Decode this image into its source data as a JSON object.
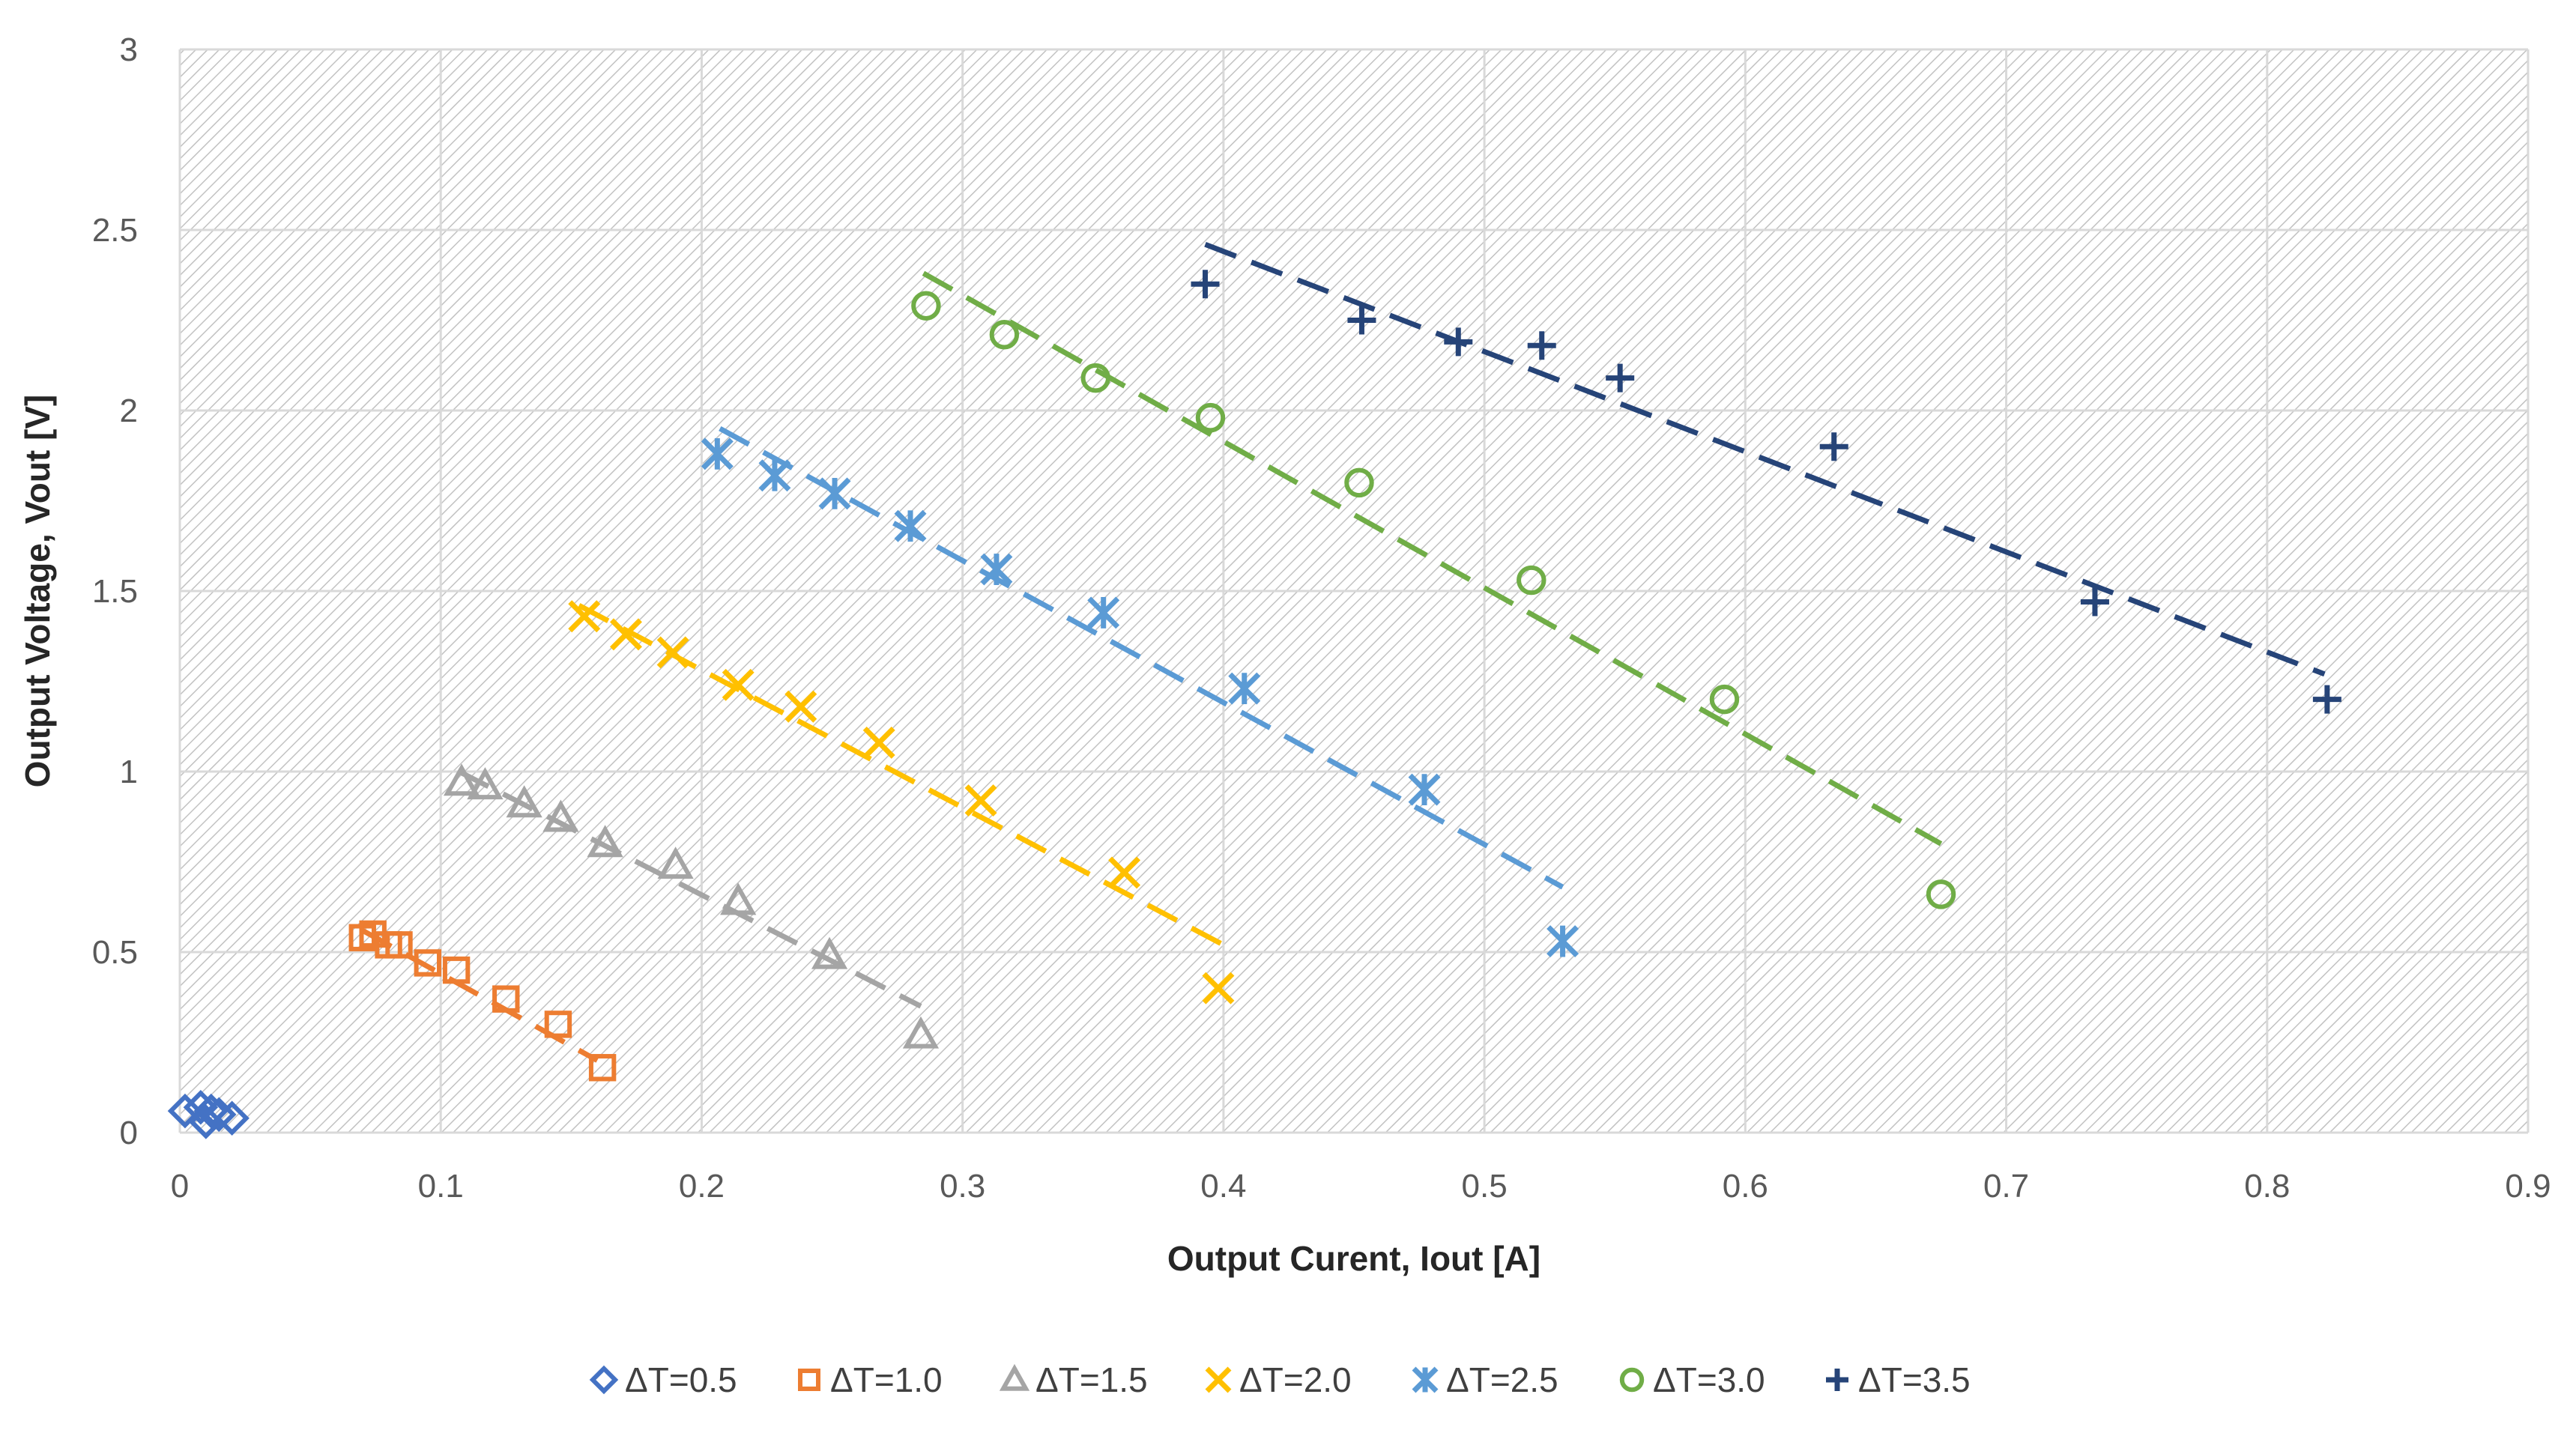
{
  "chart_data": {
    "type": "scatter",
    "title": "",
    "xlabel": "Output Curent, Iout [A]",
    "ylabel": "Output Voltage, Vout [V]",
    "xlim": [
      0,
      0.9
    ],
    "ylim": [
      0,
      3
    ],
    "xticks": [
      0,
      0.1,
      0.2,
      0.3,
      0.4,
      0.5,
      0.6,
      0.7,
      0.8,
      0.9
    ],
    "yticks": [
      0,
      0.5,
      1,
      1.5,
      2,
      2.5,
      3
    ],
    "xtick_labels": [
      "0",
      "0.1",
      "0.2",
      "0.3",
      "0.4",
      "0.5",
      "0.6",
      "0.7",
      "0.8",
      "0.9"
    ],
    "ytick_labels": [
      "0",
      "0.5",
      "1",
      "1.5",
      "2",
      "2.5",
      "3"
    ],
    "grid": true,
    "plot_background": "hatched",
    "legend_position": "bottom",
    "series": [
      {
        "name": "ΔT=0.5",
        "marker": "diamond",
        "color": "#4472C4",
        "x": [
          0.002,
          0.008,
          0.012,
          0.01,
          0.015,
          0.02
        ],
        "y": [
          0.06,
          0.07,
          0.06,
          0.03,
          0.05,
          0.04
        ],
        "trend": null
      },
      {
        "name": "ΔT=1.0",
        "marker": "square",
        "color": "#ED7D31",
        "x": [
          0.07,
          0.074,
          0.08,
          0.084,
          0.095,
          0.106,
          0.125,
          0.145,
          0.162
        ],
        "y": [
          0.54,
          0.55,
          0.52,
          0.52,
          0.47,
          0.45,
          0.37,
          0.3,
          0.18
        ],
        "trend": [
          [
            0.07,
            0.56
          ],
          [
            0.16,
            0.2
          ]
        ]
      },
      {
        "name": "ΔT=1.5",
        "marker": "triangle",
        "color": "#A5A5A5",
        "x": [
          0.108,
          0.117,
          0.132,
          0.146,
          0.163,
          0.19,
          0.214,
          0.249,
          0.284
        ],
        "y": [
          0.97,
          0.96,
          0.91,
          0.87,
          0.8,
          0.74,
          0.64,
          0.49,
          0.27
        ],
        "trend": [
          [
            0.107,
            1.0
          ],
          [
            0.284,
            0.35
          ]
        ]
      },
      {
        "name": "ΔT=2.0",
        "marker": "x",
        "color": "#FFC000",
        "x": [
          0.155,
          0.171,
          0.189,
          0.214,
          0.238,
          0.268,
          0.307,
          0.362,
          0.398
        ],
        "y": [
          1.43,
          1.38,
          1.33,
          1.24,
          1.18,
          1.08,
          0.92,
          0.72,
          0.4
        ],
        "trend": [
          [
            0.153,
            1.46
          ],
          [
            0.4,
            0.52
          ]
        ]
      },
      {
        "name": "ΔT=2.5",
        "marker": "star",
        "color": "#5B9BD5",
        "x": [
          0.206,
          0.228,
          0.251,
          0.28,
          0.313,
          0.354,
          0.408,
          0.477,
          0.53
        ],
        "y": [
          1.88,
          1.82,
          1.77,
          1.68,
          1.56,
          1.44,
          1.23,
          0.95,
          0.53
        ],
        "trend": [
          [
            0.207,
            1.95
          ],
          [
            0.53,
            0.68
          ]
        ]
      },
      {
        "name": "ΔT=3.0",
        "marker": "circle",
        "color": "#70AD47",
        "x": [
          0.286,
          0.316,
          0.351,
          0.395,
          0.452,
          0.518,
          0.592,
          0.675
        ],
        "y": [
          2.29,
          2.21,
          2.09,
          1.98,
          1.8,
          1.53,
          1.2,
          0.66
        ],
        "trend": [
          [
            0.285,
            2.38
          ],
          [
            0.675,
            0.8
          ]
        ]
      },
      {
        "name": "ΔT=3.5",
        "marker": "plus",
        "color": "#264478",
        "x": [
          0.393,
          0.453,
          0.49,
          0.522,
          0.552,
          0.634,
          0.734,
          0.823
        ],
        "y": [
          2.35,
          2.25,
          2.19,
          2.18,
          2.09,
          1.9,
          1.47,
          1.2
        ],
        "trend": [
          [
            0.393,
            2.46
          ],
          [
            0.822,
            1.27
          ]
        ]
      }
    ]
  }
}
